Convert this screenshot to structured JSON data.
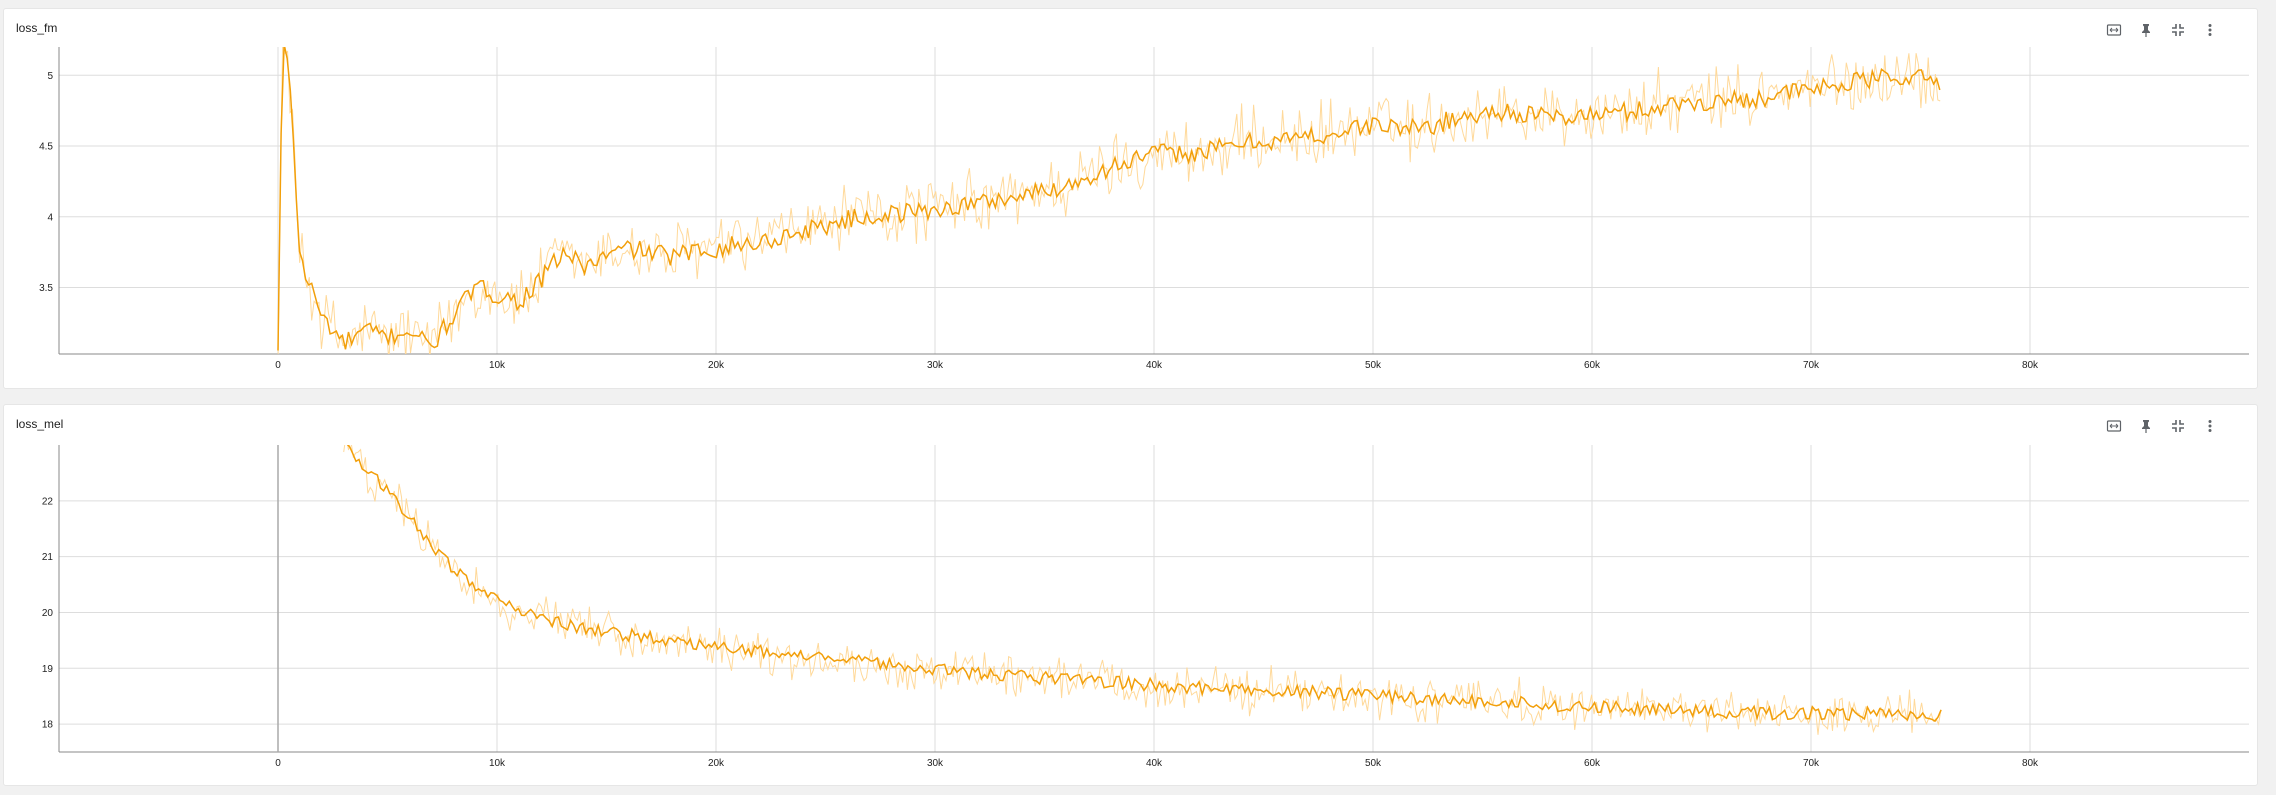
{
  "colors": {
    "smoothed": "#f29f0a",
    "raw": "#ffd99a",
    "grid": "#dddddd",
    "axis": "#888888",
    "icon": "#5f6368"
  },
  "toolbar_icons": [
    "fit-domain-icon",
    "pin-icon",
    "collapse-icon",
    "more-vert-icon"
  ],
  "chart_data": [
    {
      "type": "line",
      "title": "loss_fm",
      "xlabel": "",
      "ylabel": "",
      "x_ticks": [
        0,
        10000,
        20000,
        30000,
        40000,
        50000,
        60000,
        70000,
        80000
      ],
      "x_tick_labels": [
        "0",
        "10k",
        "20k",
        "30k",
        "40k",
        "50k",
        "60k",
        "70k",
        "80k"
      ],
      "y_ticks": [
        3.5,
        4,
        4.5,
        5
      ],
      "y_tick_labels": [
        "3.5",
        "4",
        "4.5",
        "5"
      ],
      "xlim": [
        -10000,
        90000
      ],
      "ylim": [
        3.03,
        5.2
      ],
      "grid": true,
      "series": [
        {
          "role": "smoothed",
          "x": [
            0,
            200,
            500,
            1000,
            1500,
            2000,
            3000,
            4000,
            5000,
            6000,
            7000,
            8000,
            9000,
            10000,
            11000,
            12000,
            13000,
            14000,
            15000,
            16000,
            18000,
            20000,
            22000,
            24000,
            26000,
            28000,
            30000,
            32000,
            34000,
            36000,
            38000,
            40000,
            42000,
            44000,
            46000,
            48000,
            50000,
            52000,
            54000,
            56000,
            58000,
            60000,
            62000,
            64000,
            66000,
            68000,
            70000,
            72000,
            74000,
            76000
          ],
          "y": [
            3.05,
            5.2,
            5.1,
            3.7,
            3.5,
            3.3,
            3.1,
            3.2,
            3.15,
            3.2,
            3.08,
            3.3,
            3.5,
            3.45,
            3.4,
            3.55,
            3.75,
            3.65,
            3.72,
            3.78,
            3.72,
            3.78,
            3.82,
            3.9,
            3.98,
            4.02,
            4.05,
            4.1,
            4.15,
            4.22,
            4.35,
            4.45,
            4.45,
            4.52,
            4.55,
            4.58,
            4.65,
            4.62,
            4.7,
            4.75,
            4.7,
            4.72,
            4.75,
            4.8,
            4.82,
            4.85,
            4.9,
            4.95,
            5.0,
            4.95
          ]
        }
      ]
    },
    {
      "type": "line",
      "title": "loss_mel",
      "xlabel": "",
      "ylabel": "",
      "x_ticks": [
        0,
        10000,
        20000,
        30000,
        40000,
        50000,
        60000,
        70000,
        80000
      ],
      "x_tick_labels": [
        "0",
        "10k",
        "20k",
        "30k",
        "40k",
        "50k",
        "60k",
        "70k",
        "80k"
      ],
      "y_ticks": [
        18,
        19,
        20,
        21,
        22
      ],
      "y_tick_labels": [
        "18",
        "19",
        "20",
        "21",
        "22"
      ],
      "xlim": [
        -10000,
        90000
      ],
      "ylim": [
        17.5,
        23.0
      ],
      "grid": true,
      "series": [
        {
          "role": "smoothed",
          "x": [
            3000,
            4000,
            5000,
            6000,
            7000,
            8000,
            9000,
            10000,
            11000,
            12000,
            13000,
            14000,
            15000,
            16000,
            18000,
            20000,
            22000,
            24000,
            26000,
            28000,
            30000,
            32000,
            34000,
            36000,
            38000,
            40000,
            42000,
            44000,
            46000,
            48000,
            50000,
            52000,
            54000,
            56000,
            58000,
            60000,
            62000,
            64000,
            66000,
            68000,
            70000,
            72000,
            74000,
            76000
          ],
          "y": [
            23.0,
            22.6,
            22.2,
            21.7,
            21.2,
            20.8,
            20.5,
            20.2,
            20.0,
            19.9,
            19.8,
            19.7,
            19.65,
            19.6,
            19.5,
            19.4,
            19.3,
            19.2,
            19.15,
            19.05,
            19.0,
            18.9,
            18.85,
            18.8,
            18.75,
            18.7,
            18.65,
            18.62,
            18.6,
            18.55,
            18.5,
            18.45,
            18.42,
            18.4,
            18.35,
            18.3,
            18.28,
            18.25,
            18.22,
            18.2,
            18.2,
            18.18,
            18.2,
            18.15
          ]
        }
      ]
    }
  ]
}
